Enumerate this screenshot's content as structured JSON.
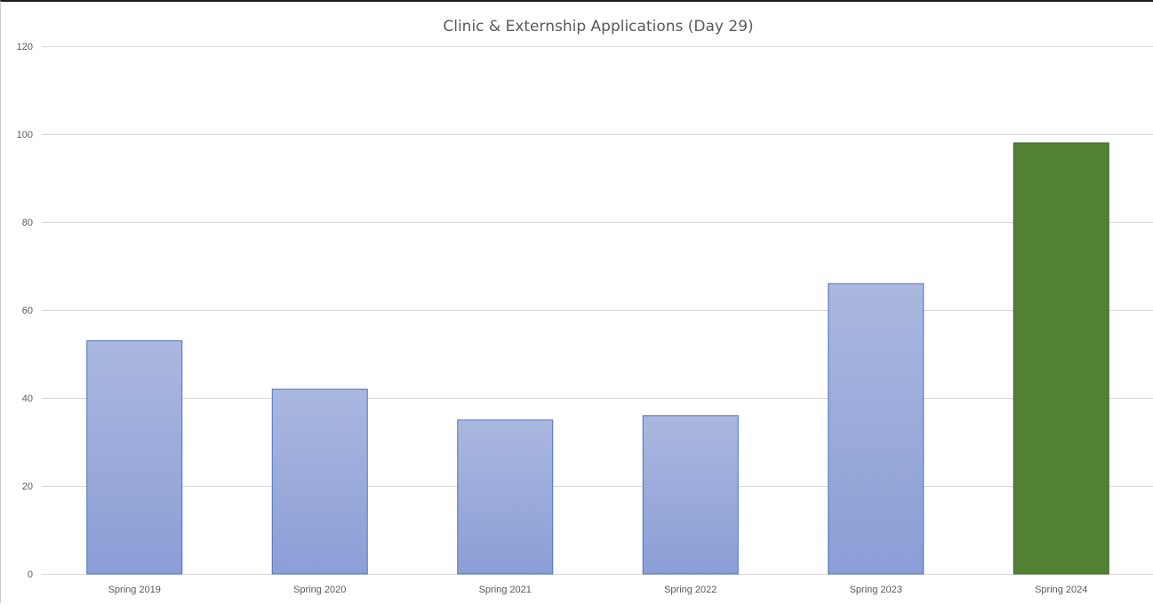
{
  "chart_data": {
    "type": "bar",
    "title": "Clinic & Externship Applications (Day 29)",
    "xlabel": "",
    "ylabel": "",
    "categories": [
      "Spring 2019",
      "Spring 2020",
      "Spring 2021",
      "Spring 2022",
      "Spring 2023",
      "Spring 2024"
    ],
    "values": [
      53,
      42,
      35,
      36,
      66,
      98
    ],
    "highlight_index": 5,
    "ylim": [
      0,
      120
    ],
    "yticks": [
      0,
      20,
      40,
      60,
      80,
      100,
      120
    ],
    "grid": true,
    "legend": "none",
    "colors": {
      "bar_top": "#aab7df",
      "bar_bottom": "#8b9ed6",
      "bar_stroke": "#4f72c4",
      "highlight_fill": "#548235",
      "highlight_stroke": "#3e6127",
      "grid": "#d9d9d9",
      "text": "#595959"
    }
  }
}
